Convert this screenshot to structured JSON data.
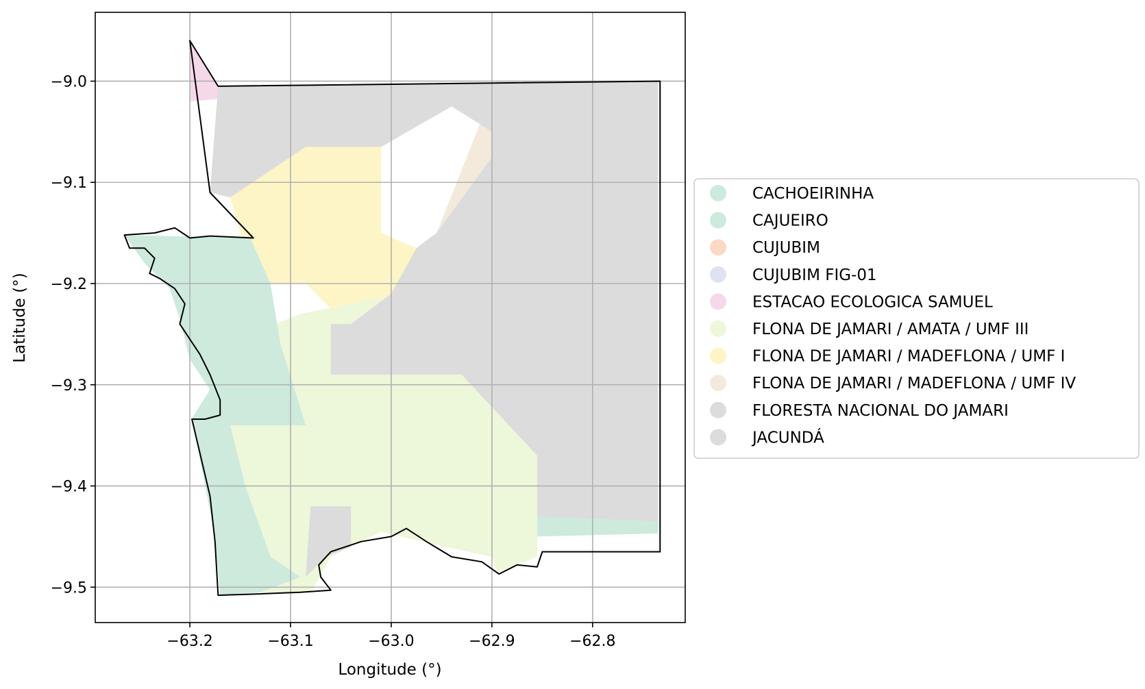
{
  "chart_data": {
    "type": "map",
    "title": "",
    "xlabel": "Longitude (°)",
    "ylabel": "Latitude (°)",
    "xlim": [
      -63.294,
      -62.708
    ],
    "ylim": [
      -9.535,
      -8.932
    ],
    "x_ticks": [
      -63.2,
      -63.1,
      -63.0,
      -62.9,
      -62.8
    ],
    "x_tick_labels": [
      "−63.2",
      "−63.1",
      "−63.0",
      "−62.9",
      "−62.8"
    ],
    "y_ticks": [
      -9.0,
      -9.1,
      -9.2,
      -9.3,
      -9.4,
      -9.5
    ],
    "y_tick_labels": [
      "−9.0",
      "−9.1",
      "−9.2",
      "−9.3",
      "−9.4",
      "−9.5"
    ],
    "grid": true,
    "legend_position": "right",
    "legend": [
      {
        "label": "CACHOEIRINHA",
        "color": "#cdeadd"
      },
      {
        "label": "CAJUEIRO",
        "color": "#cdeadd"
      },
      {
        "label": "CUJUBIM",
        "color": "#fcd9c5"
      },
      {
        "label": "CUJUBIM FIG-01",
        "color": "#dfe2f1"
      },
      {
        "label": "ESTACAO ECOLOGICA SAMUEL",
        "color": "#f6d8eb"
      },
      {
        "label": "FLONA DE JAMARI / AMATA / UMF III",
        "color": "#edf7d9"
      },
      {
        "label": "FLONA DE JAMARI / MADEFLONA / UMF I",
        "color": "#fef5c6"
      },
      {
        "label": "FLONA DE JAMARI / MADEFLONA / UMF IV",
        "color": "#f3eadc"
      },
      {
        "label": "FLORESTA NACIONAL DO JAMARI",
        "color": "#dcdcdc"
      },
      {
        "label": "JACUNDÁ",
        "color": "#dcdcdc"
      }
    ],
    "regions": [
      {
        "name": "ESTACAO ECOLOGICA SAMUEL",
        "color": "#f6d8eb",
        "polygon": [
          [
            -63.2,
            -8.96
          ],
          [
            -63.2,
            -9.02
          ],
          [
            -63.14,
            -9.015
          ],
          [
            -63.14,
            -9.005
          ],
          [
            -63.172,
            -9.005
          ]
        ]
      },
      {
        "name": "FLONA DE JAMARI / MADEFLONA / UMF IV",
        "color": "#f3eadc",
        "polygon": [
          [
            -62.895,
            -9.0
          ],
          [
            -62.735,
            -9.0
          ],
          [
            -62.735,
            -9.235
          ],
          [
            -62.9,
            -9.235
          ],
          [
            -62.955,
            -9.15
          ]
        ]
      },
      {
        "name": "FLONA DE JAMARI / MADEFLONA / UMF I",
        "color": "#fef5c6",
        "polygon": [
          [
            -63.085,
            -9.065
          ],
          [
            -63.01,
            -9.065
          ],
          [
            -63.01,
            -9.15
          ],
          [
            -62.975,
            -9.165
          ],
          [
            -62.985,
            -9.2
          ],
          [
            -63.045,
            -9.24
          ],
          [
            -63.085,
            -9.2
          ],
          [
            -63.135,
            -9.2
          ],
          [
            -63.16,
            -9.115
          ]
        ]
      },
      {
        "name": "FLONA DE JAMARI / AMATA / UMF III",
        "color": "#edf7d9",
        "polygon": [
          [
            -63.14,
            -9.25
          ],
          [
            -63.09,
            -9.23
          ],
          [
            -62.99,
            -9.21
          ],
          [
            -62.93,
            -9.21
          ],
          [
            -62.93,
            -9.29
          ],
          [
            -62.855,
            -9.37
          ],
          [
            -62.855,
            -9.47
          ],
          [
            -62.895,
            -9.485
          ],
          [
            -62.9,
            -9.47
          ],
          [
            -62.97,
            -9.455
          ],
          [
            -63.01,
            -9.445
          ],
          [
            -63.06,
            -9.47
          ],
          [
            -63.08,
            -9.505
          ],
          [
            -63.13,
            -9.505
          ],
          [
            -63.16,
            -9.46
          ],
          [
            -63.17,
            -9.33
          ]
        ]
      },
      {
        "name": "FLORESTA NACIONAL DO JAMARI",
        "color": "#dcdcdc",
        "polygon": [
          [
            -63.172,
            -9.005
          ],
          [
            -62.735,
            -9.0
          ],
          [
            -62.735,
            -9.445
          ],
          [
            -62.855,
            -9.45
          ],
          [
            -62.855,
            -9.37
          ],
          [
            -62.93,
            -9.29
          ],
          [
            -63.06,
            -9.29
          ],
          [
            -63.06,
            -9.24
          ],
          [
            -63.04,
            -9.24
          ],
          [
            -63.0,
            -9.21
          ],
          [
            -62.975,
            -9.165
          ],
          [
            -62.955,
            -9.15
          ],
          [
            -62.9,
            -9.075
          ],
          [
            -62.9,
            -9.05
          ],
          [
            -62.94,
            -9.025
          ],
          [
            -63.01,
            -9.065
          ],
          [
            -63.085,
            -9.065
          ],
          [
            -63.16,
            -9.115
          ],
          [
            -63.18,
            -9.11
          ]
        ]
      },
      {
        "name": "JACUNDÁ",
        "color": "#dcdcdc",
        "polygon": [
          [
            -63.08,
            -9.42
          ],
          [
            -63.04,
            -9.42
          ],
          [
            -63.04,
            -9.46
          ],
          [
            -63.065,
            -9.47
          ],
          [
            -63.085,
            -9.49
          ]
        ]
      },
      {
        "name": "CACHOEIRINHA",
        "color": "#cdeadd",
        "polygon": [
          [
            -63.265,
            -9.152
          ],
          [
            -63.14,
            -9.155
          ],
          [
            -63.12,
            -9.2
          ],
          [
            -63.11,
            -9.26
          ],
          [
            -63.085,
            -9.34
          ],
          [
            -63.16,
            -9.34
          ],
          [
            -63.145,
            -9.4
          ],
          [
            -63.12,
            -9.47
          ],
          [
            -63.09,
            -9.49
          ],
          [
            -63.13,
            -9.505
          ],
          [
            -63.17,
            -9.508
          ],
          [
            -63.175,
            -9.45
          ],
          [
            -63.198,
            -9.333
          ],
          [
            -63.18,
            -9.305
          ],
          [
            -63.2,
            -9.275
          ],
          [
            -63.21,
            -9.235
          ],
          [
            -63.22,
            -9.205
          ],
          [
            -63.245,
            -9.18
          ]
        ]
      },
      {
        "name": "CAJUEIRO",
        "color": "#cdeadd",
        "polygon": [
          [
            -62.855,
            -9.45
          ],
          [
            -62.735,
            -9.447
          ],
          [
            -62.735,
            -9.435
          ],
          [
            -62.855,
            -9.43
          ]
        ]
      }
    ],
    "boundary": [
      [
        -63.2,
        -8.96
      ],
      [
        -63.172,
        -9.005
      ],
      [
        -62.733,
        -9.0
      ],
      [
        -62.733,
        -9.465
      ],
      [
        -62.85,
        -9.465
      ],
      [
        -62.855,
        -9.48
      ],
      [
        -62.875,
        -9.478
      ],
      [
        -62.893,
        -9.487
      ],
      [
        -62.91,
        -9.475
      ],
      [
        -62.94,
        -9.47
      ],
      [
        -62.965,
        -9.455
      ],
      [
        -62.985,
        -9.442
      ],
      [
        -63.0,
        -9.45
      ],
      [
        -63.03,
        -9.455
      ],
      [
        -63.06,
        -9.465
      ],
      [
        -63.072,
        -9.478
      ],
      [
        -63.07,
        -9.49
      ],
      [
        -63.06,
        -9.503
      ],
      [
        -63.09,
        -9.505
      ],
      [
        -63.14,
        -9.507
      ],
      [
        -63.172,
        -9.508
      ],
      [
        -63.175,
        -9.455
      ],
      [
        -63.18,
        -9.41
      ],
      [
        -63.198,
        -9.334
      ],
      [
        -63.185,
        -9.334
      ],
      [
        -63.17,
        -9.33
      ],
      [
        -63.17,
        -9.315
      ],
      [
        -63.18,
        -9.29
      ],
      [
        -63.19,
        -9.27
      ],
      [
        -63.2,
        -9.255
      ],
      [
        -63.21,
        -9.24
      ],
      [
        -63.205,
        -9.22
      ],
      [
        -63.215,
        -9.205
      ],
      [
        -63.23,
        -9.195
      ],
      [
        -63.24,
        -9.19
      ],
      [
        -63.235,
        -9.175
      ],
      [
        -63.245,
        -9.165
      ],
      [
        -63.26,
        -9.165
      ],
      [
        -63.265,
        -9.152
      ],
      [
        -63.235,
        -9.15
      ],
      [
        -63.215,
        -9.145
      ],
      [
        -63.2,
        -9.155
      ],
      [
        -63.18,
        -9.153
      ],
      [
        -63.137,
        -9.155
      ],
      [
        -63.18,
        -9.11
      ]
    ]
  }
}
